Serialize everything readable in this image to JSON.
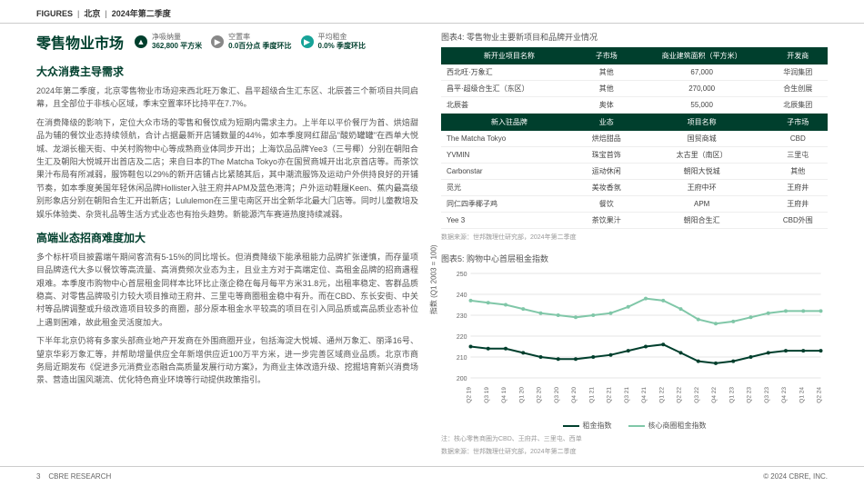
{
  "header": {
    "figures": "FIGURES",
    "region": "北京",
    "period": "2024年第二季度"
  },
  "mainTitle": "零售物业市场",
  "metrics": [
    {
      "icon": "▲",
      "cls": "icon-green",
      "label": "净吸纳量",
      "value": "362,800 平方米"
    },
    {
      "icon": "▶",
      "cls": "icon-gray",
      "label": "空置率",
      "value": "0.0百分点 季度环比"
    },
    {
      "icon": "▶",
      "cls": "icon-teal",
      "label": "平均租金",
      "value": "0.0% 季度环比"
    }
  ],
  "sections": [
    {
      "title": "大众消费主导需求",
      "paras": [
        "2024年第二季度，北京零售物业市场迎来西北旺万象汇、昌平超级合生汇东区、北辰荟三个新项目共同启幕，且全部位于非核心区域，季末空置率环比持平在7.7%。",
        "在消费降级的影响下，定位大众市场的零售和餐饮成为短期内需求主力。上半年以平价餐厅为首、烘焙甜品为辅的餐饮业态持续领航，合计占据最新开店铺数量的44%，如本季度网红甜品\"酸奶罐罐\"在西单大悦城、龙湖长楹天街、中关村购物中心等成熟商业体同步开出；上海饮品品牌Yee3（三号椰）分别在朝阳合生汇及朝阳大悦城开出首店及二店；来自日本的The Matcha Tokyo亦在国贸商城开出北京首店等。而茶饮果汁布局有所减弱，服饰鞋包以29%的新开店铺占比紧随其后，其中潮流服饰及运动户外供持良好的开铺节奏，如本季度美国年轻休闲品牌Hollister入驻王府井APM及蓝色港湾；户外运动鞋履Keen、蕉内最高级别形象店分别在朝阳合生汇开出新店；Lululemon在三里屯南区开出全新华北最大门店等。同时儿童教培及娱乐体验类、杂货礼品等生活方式业态也有抬头趋势。新能源汽车赛道热度持续减弱。"
      ]
    },
    {
      "title": "高端业态招商难度加大",
      "paras": [
        "多个标杆项目披露端午期间客流有5-15%的同比增长。但消费降级下能承租能力品牌扩张谨慎，而存量项目品牌迭代大多以餐饮等高流量、高消费频次业态为主，且业主方对于高端定位、高租金品牌的招商遇程艰难。本季度市购物中心首层租金同样本比环比止涨企稳在每月每平方米31.8元，出租率稳定、客群品质稳高、对零售品牌吸引力较大项目推动王府井、三里屯等商圈租金稳中有升。而在CBD、东长安街、中关村等品牌调整或升级改造项目较多的商圈，部分原本租金水平较高的项目在引入同品质或高品质业态补位上遇到困难，故此租金灵活度加大。",
        "下半年北京仍将有多家头部商业地产开发商在外围商圈开业，包括海淀大悦城、通州万象汇、丽泽16号、望京华彩万象汇等，并帮助增量供应全年新增供应近100万平方米，进一步完善区域商业品质。北京市商务局近期发布《促进多元消费业态融合高质量发展行动方案》，为商业主体改造升级、挖掘培育新兴消费场景、营造出国风潮流、优化特色商业环境等行动提供政策指引。"
      ]
    }
  ],
  "table4": {
    "caption": "图表4: 零售物业主要新项目和品牌开业情况",
    "head1": [
      "新开业项目名称",
      "子市场",
      "商业建筑面积（平方米）",
      "开发商"
    ],
    "rows1": [
      [
        "西北旺·万象汇",
        "其他",
        "67,000",
        "华润集团"
      ],
      [
        "昌平·超级合生汇（东区）",
        "其他",
        "270,000",
        "合生创展"
      ],
      [
        "北辰荟",
        "奥体",
        "55,000",
        "北辰集团"
      ]
    ],
    "head2": [
      "新入驻品牌",
      "业态",
      "项目名称",
      "子市场"
    ],
    "rows2": [
      [
        "The Matcha Tokyo",
        "烘焙甜品",
        "国贸商城",
        "CBD"
      ],
      [
        "YVMIN",
        "珠宝首饰",
        "太古里（南区）",
        "三里屯"
      ],
      [
        "Carbonstar",
        "运动休闲",
        "朝阳大悦城",
        "其他"
      ],
      [
        "觅光",
        "美妆香氛",
        "王府中环",
        "王府井"
      ],
      [
        "同仁四季椰子鸡",
        "餐饮",
        "APM",
        "王府井"
      ],
      [
        "Yee 3",
        "茶饮果汁",
        "朝阳合生汇",
        "CBD外围"
      ]
    ],
    "source": "数据来源：世邦魏理仕研究部，2024年第二季度"
  },
  "chart5": {
    "caption": "图表5: 购物中心首层租金指数",
    "ylabel": "指数 (Q1 2003 = 100)",
    "ylim": [
      200,
      250
    ],
    "yticks": [
      200,
      210,
      220,
      230,
      240,
      250
    ],
    "xlabels": [
      "Q2 19",
      "Q3 19",
      "Q4 19",
      "Q1 20",
      "Q2 20",
      "Q3 20",
      "Q4 20",
      "Q1 21",
      "Q2 21",
      "Q3 21",
      "Q4 21",
      "Q1 22",
      "Q2 22",
      "Q3 22",
      "Q4 22",
      "Q1 23",
      "Q2 23",
      "Q3 23",
      "Q4 23",
      "Q1 24",
      "Q2 24"
    ],
    "series": [
      {
        "name": "租金指数",
        "color": "#003f2d",
        "values": [
          215,
          214,
          214,
          212,
          210,
          209,
          209,
          210,
          211,
          213,
          215,
          216,
          212,
          208,
          207,
          208,
          210,
          212,
          213,
          213,
          213
        ]
      },
      {
        "name": "核心商圈租金指数",
        "color": "#80c7a8",
        "values": [
          237,
          236,
          235,
          233,
          231,
          230,
          229,
          230,
          231,
          234,
          238,
          237,
          233,
          228,
          226,
          227,
          229,
          231,
          232,
          232,
          232
        ]
      }
    ],
    "note": "注：核心零售商圈为CBD、王府井、三里屯、西单",
    "source": "数据来源：世邦魏理仕研究部，2024年第二季度",
    "grid_color": "#e5e5e5",
    "background_color": "#ffffff"
  },
  "footer": {
    "page": "3",
    "left": "CBRE RESEARCH",
    "right": "© 2024 CBRE, INC."
  }
}
